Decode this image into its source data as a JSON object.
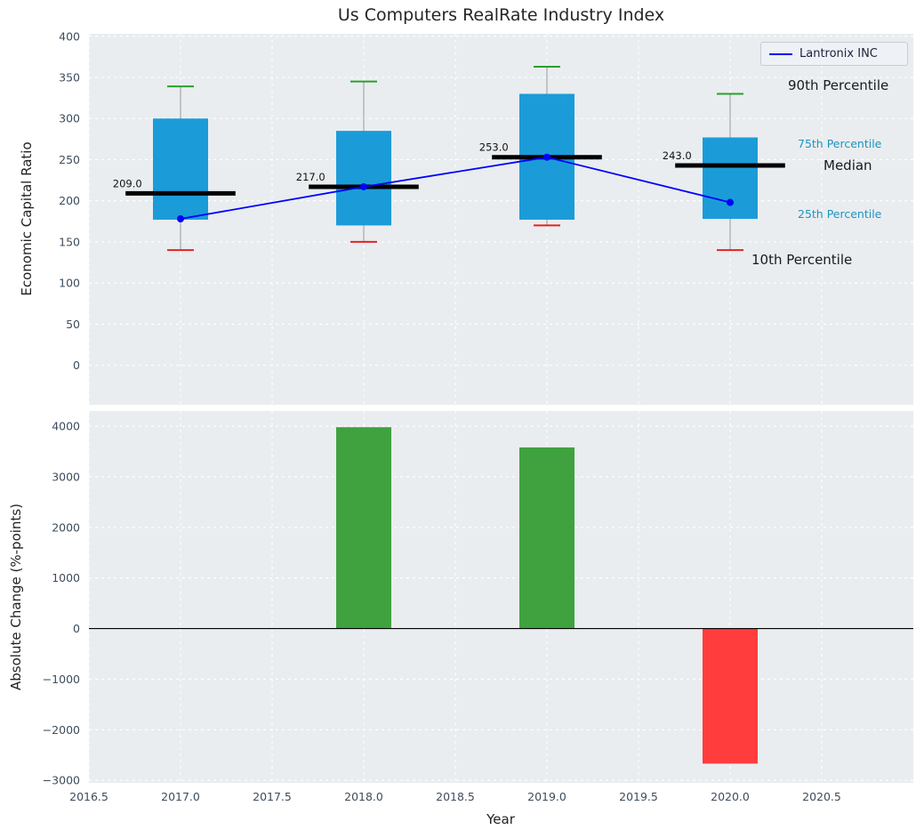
{
  "title": "Us Computers RealRate Industry Index",
  "legend": {
    "label": "Lantronix INC"
  },
  "annotations": {
    "p90": "90th Percentile",
    "p75": "75th Percentile",
    "median": "Median",
    "p25": "25th Percentile",
    "p10": "10th Percentile"
  },
  "colors": {
    "box": "#1b9cd8",
    "median": "#000000",
    "whisker": "#999999",
    "cap_high": "#2ca02c",
    "cap_low": "#e32222",
    "line": "#0000ff",
    "panel_bg": "#e9edf0",
    "grid": "#ffffff",
    "tick": "#3d4d5c",
    "teal_text": "#1f94bd"
  },
  "chart_data": [
    {
      "type": "boxplot",
      "title": "Us Computers RealRate Industry Index",
      "ylabel": "Economic Capital Ratio",
      "ylim": [
        -48,
        403
      ],
      "yticks": [
        0,
        50,
        100,
        150,
        200,
        250,
        300,
        350,
        400
      ],
      "ytick_labels": [
        "0",
        "50",
        "100",
        "150",
        "200",
        "250",
        "300",
        "350",
        "400"
      ],
      "x": [
        2017,
        2018,
        2019,
        2020
      ],
      "series": {
        "p10": [
          140,
          150,
          170,
          140
        ],
        "p25": [
          177,
          170,
          177,
          178
        ],
        "median": [
          209,
          217,
          253,
          243
        ],
        "p75": [
          300,
          285,
          330,
          277
        ],
        "p90": [
          339,
          345,
          363,
          330
        ],
        "lantronix": [
          178,
          217,
          253,
          198
        ]
      },
      "median_labels": [
        "209.0",
        "217.0",
        "253.0",
        "243.0"
      ],
      "legend": [
        "Lantronix INC"
      ],
      "legend_position": "upper right",
      "grid": true
    },
    {
      "type": "bar",
      "ylabel": "Absolute Change (%-points)",
      "xlabel": "Year",
      "ylim": [
        -3050,
        4300
      ],
      "yticks": [
        -3000,
        -2000,
        -1000,
        0,
        1000,
        2000,
        3000,
        4000
      ],
      "ytick_labels": [
        "−3000",
        "−2000",
        "−1000",
        "0",
        "1000",
        "2000",
        "3000",
        "4000"
      ],
      "xticks": [
        2016.5,
        2017.0,
        2017.5,
        2018.0,
        2018.5,
        2019.0,
        2019.5,
        2020.0,
        2020.5
      ],
      "xtick_labels": [
        "2016.5",
        "2017.0",
        "2017.5",
        "2018.0",
        "2018.5",
        "2019.0",
        "2019.5",
        "2020.0",
        "2020.5"
      ],
      "x": [
        2018,
        2019,
        2020
      ],
      "values": [
        3980,
        3580,
        -2670
      ],
      "colors": {
        "positive": "#3fa23f",
        "negative": "#ff3d3d"
      },
      "grid": true
    }
  ]
}
